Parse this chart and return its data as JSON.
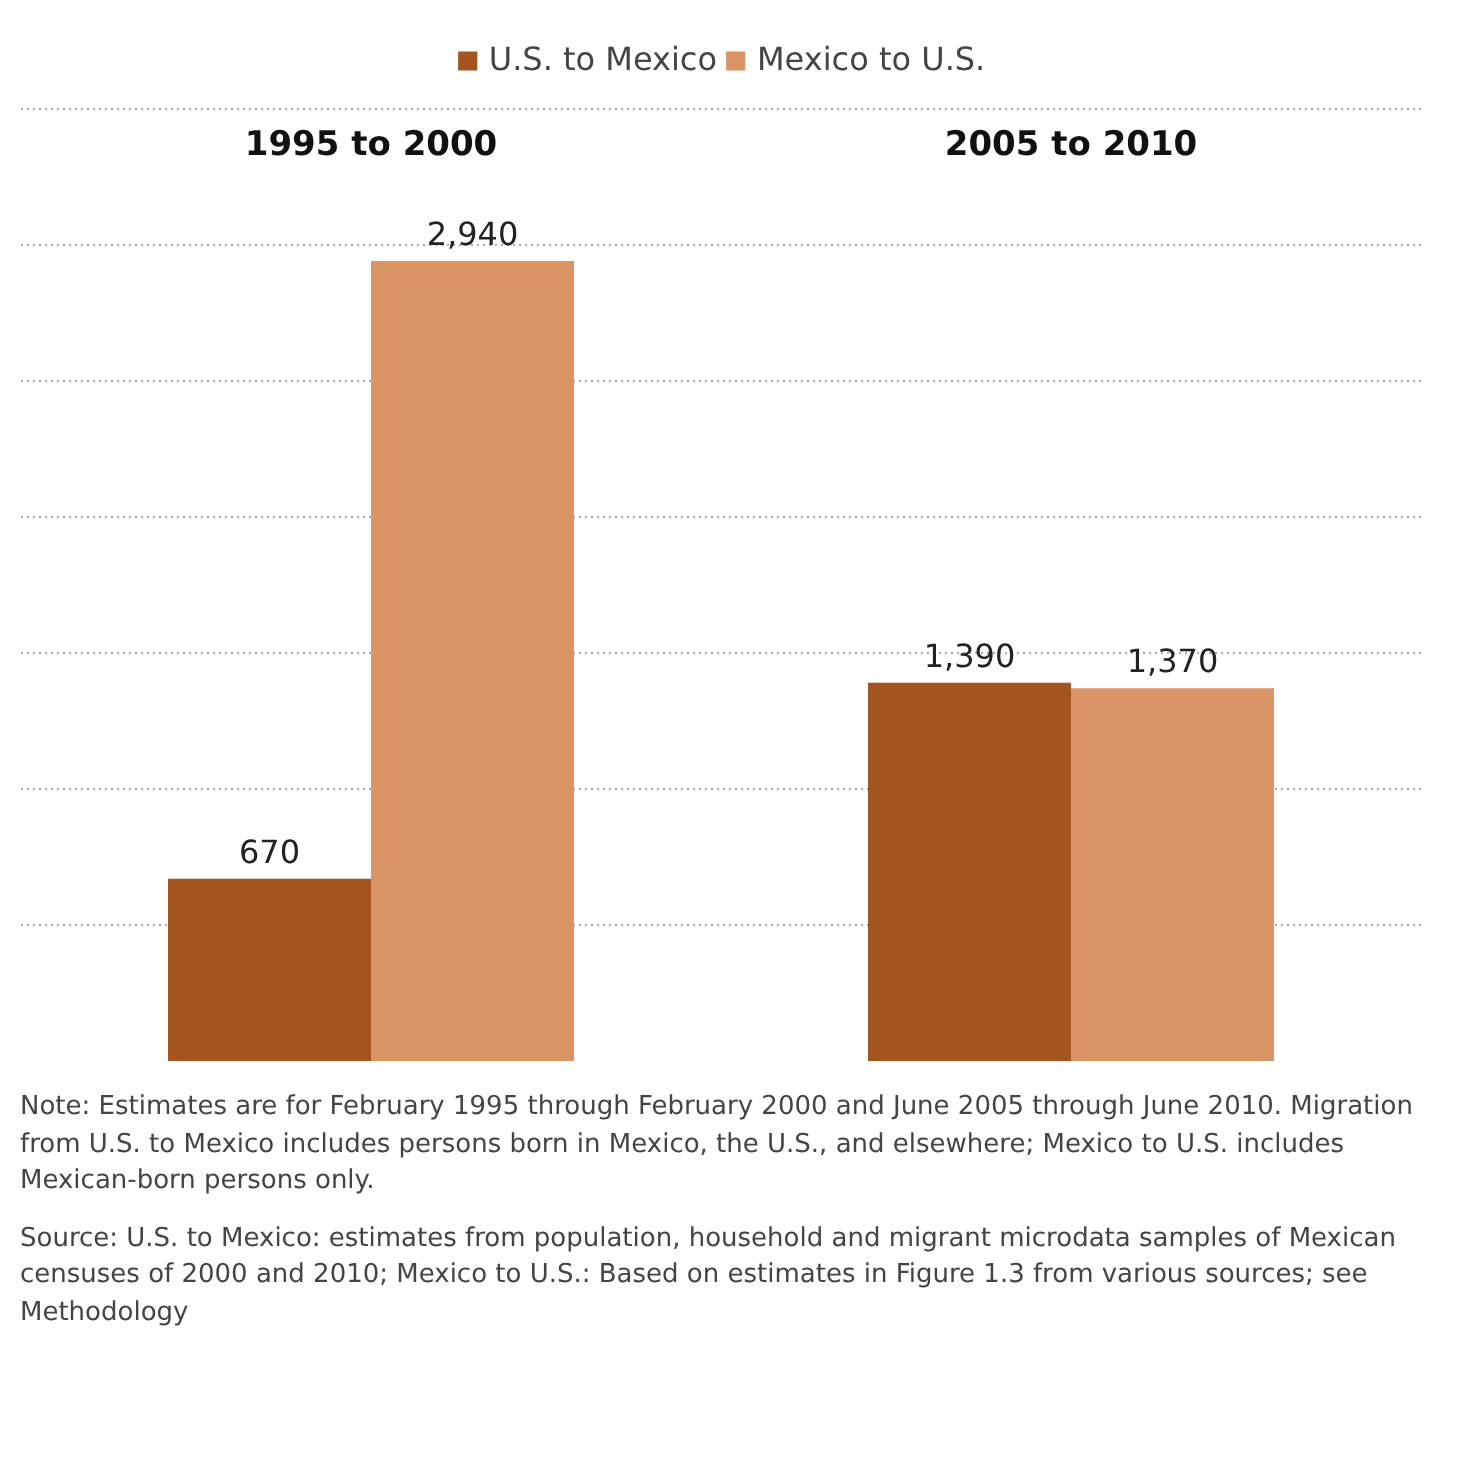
{
  "chart_data": {
    "type": "bar",
    "categories": [
      "1995 to 2000",
      "2005 to 2010"
    ],
    "series": [
      {
        "name": "U.S. to Mexico",
        "color": "#a3541f",
        "values": [
          670,
          1390
        ],
        "value_labels": [
          "670",
          "1,390"
        ]
      },
      {
        "name": "Mexico to U.S.",
        "color": "#da9566",
        "values": [
          2940,
          1370
        ],
        "value_labels": [
          "2,940",
          "1,370"
        ]
      }
    ],
    "grid": "y",
    "legend": "top",
    "annotations": [
      "Note: Estimates are for February 1995 through February 2000 and June 2005 through June 2010. Migration from U.S. to Mexico includes persons born in Mexico, the U.S., and elsewhere; Mexico to U.S. includes Mexican-born persons only.",
      "Source: U.S. to Mexico: estimates from population, household and migrant microdata samples of Mexican censuses of 2000 and 2010; Mexico to U.S.: Based on estimates in Figure 1.3 from various sources; see Methodology"
    ]
  }
}
